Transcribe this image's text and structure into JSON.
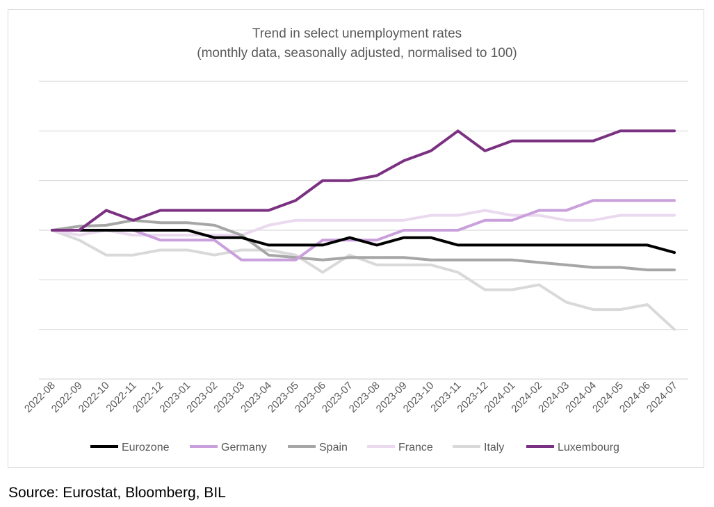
{
  "chart_data": {
    "type": "line",
    "title": "Trend in select unemployment rates",
    "subtitle": "(monthly data, seasonally adjusted, normalised to 100)",
    "x": [
      "2022-08",
      "2022-09",
      "2022-10",
      "2022-11",
      "2022-12",
      "2023-01",
      "2023-02",
      "2023-03",
      "2023-04",
      "2023-05",
      "2023-06",
      "2023-07",
      "2023-08",
      "2023-09",
      "2023-10",
      "2023-11",
      "2023-12",
      "2024-01",
      "2024-02",
      "2024-03",
      "2024-04",
      "2024-05",
      "2024-06",
      "2024-07"
    ],
    "ylim": [
      70,
      130
    ],
    "grid": true,
    "legend_position": "bottom",
    "series": [
      {
        "name": "Eurozone",
        "color": "#000000",
        "values": [
          100,
          100,
          100,
          100,
          100,
          100,
          98.5,
          98.5,
          97,
          97,
          97,
          98.5,
          97,
          98.5,
          98.5,
          97,
          97,
          97,
          97,
          97,
          97,
          97,
          97,
          95.5
        ]
      },
      {
        "name": "Germany",
        "color": "#c9a0dc",
        "values": [
          100,
          100,
          100,
          100,
          98,
          98,
          98,
          94,
          94,
          94,
          98,
          98,
          98,
          100,
          100,
          100,
          102,
          102,
          104,
          104,
          106,
          106,
          106,
          106
        ]
      },
      {
        "name": "Spain",
        "color": "#a6a6a6",
        "values": [
          100,
          100.8,
          101,
          102,
          101.5,
          101.5,
          101,
          99,
          95,
          94.5,
          94,
          94.5,
          94.5,
          94.5,
          94,
          94,
          94,
          94,
          93.5,
          93,
          92.5,
          92.5,
          92,
          92
        ]
      },
      {
        "name": "France",
        "color": "#ead9ef",
        "values": [
          100,
          99,
          100,
          99,
          99,
          99,
          99,
          99,
          101,
          102,
          102,
          102,
          102,
          102,
          103,
          103,
          104,
          103,
          103,
          102,
          102,
          103,
          103,
          103
        ]
      },
      {
        "name": "Italy",
        "color": "#d9d9d9",
        "values": [
          100,
          98,
          95,
          95,
          96,
          96,
          95,
          96,
          96,
          95,
          91.5,
          95,
          93,
          93,
          93,
          91.5,
          88,
          88,
          89,
          85.5,
          84,
          84,
          85,
          80
        ]
      },
      {
        "name": "Luxembourg",
        "color": "#7b3181",
        "values": [
          100,
          100,
          104,
          102,
          104,
          104,
          104,
          104,
          104,
          106,
          110,
          110,
          111,
          114,
          116,
          120,
          116,
          118,
          118,
          118,
          118,
          120,
          120,
          120
        ]
      }
    ]
  },
  "source": "Source: Eurostat, Bloomberg, BIL"
}
